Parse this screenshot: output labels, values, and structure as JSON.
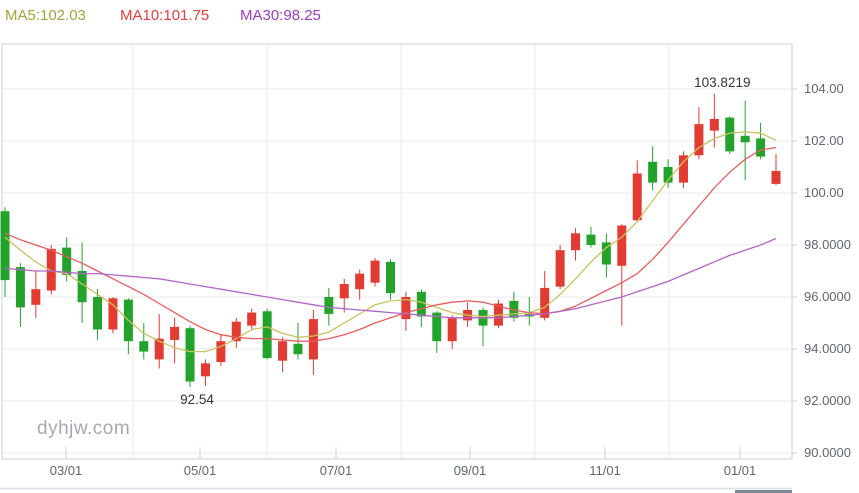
{
  "legend": {
    "ma5_label": "MA5:102.03",
    "ma10_label": "MA10:101.75",
    "ma30_label": "MA30:98.25"
  },
  "annotations": {
    "high_label": "103.8219",
    "low_label": "92.54"
  },
  "watermark": "dyhjw.com",
  "colors": {
    "up_candle": "#e23b32",
    "down_candle": "#23a32b",
    "ma5_line": "#c9c25e",
    "ma10_line": "#e75d5d",
    "ma30_line": "#b465c8",
    "legend_ma5": "#a3a33b",
    "legend_ma10": "#ee3b3b",
    "legend_ma30": "#9d3dbb",
    "grid": "#ebebf0",
    "border": "#c9d0d9",
    "axis_text": "#5f6670",
    "annotation_text": "#333333",
    "watermark_text": "#a6aab0",
    "scroll_track": "#d8dce3",
    "scroll_thumb": "#7b8696"
  },
  "chart_data": {
    "type": "candlestick",
    "title": "",
    "x_tick_labels": [
      "03/01",
      "05/01",
      "07/01",
      "09/01",
      "11/01",
      "01/01"
    ],
    "y_tick_labels": [
      "104.00",
      "102.00",
      "100.00",
      "98.0000",
      "96.0000",
      "94.0000",
      "92.0000",
      "90.0000"
    ],
    "y_tick_values": [
      104,
      102,
      100,
      98,
      96,
      94,
      92,
      90
    ],
    "ylim": [
      89.8,
      105.7
    ],
    "grid": true,
    "up_means": "red (close >= open)",
    "down_means": "green (close < open)",
    "high_annotation": {
      "value": 103.8219,
      "candle_index": 46
    },
    "low_annotation": {
      "value": 92.54,
      "candle_index": 12
    },
    "candles_ohlc": [
      [
        99.3,
        99.45,
        96.0,
        96.65
      ],
      [
        97.15,
        97.3,
        94.85,
        95.6
      ],
      [
        95.7,
        97.0,
        95.2,
        96.3
      ],
      [
        96.25,
        98.0,
        96.1,
        97.85
      ],
      [
        97.9,
        98.3,
        96.6,
        96.85
      ],
      [
        97.0,
        98.1,
        95.0,
        95.8
      ],
      [
        96.0,
        96.3,
        94.35,
        94.75
      ],
      [
        94.75,
        96.0,
        94.6,
        95.95
      ],
      [
        95.9,
        95.95,
        93.8,
        94.3
      ],
      [
        94.3,
        95.0,
        93.6,
        93.9
      ],
      [
        93.6,
        95.35,
        93.25,
        94.4
      ],
      [
        94.35,
        95.2,
        93.45,
        94.85
      ],
      [
        94.8,
        94.9,
        92.54,
        92.75
      ],
      [
        92.95,
        93.6,
        92.58,
        93.45
      ],
      [
        93.5,
        94.55,
        93.35,
        94.3
      ],
      [
        94.3,
        95.2,
        94.05,
        95.05
      ],
      [
        94.9,
        95.55,
        94.75,
        95.4
      ],
      [
        95.45,
        95.55,
        93.6,
        93.65
      ],
      [
        93.55,
        94.45,
        93.1,
        94.3
      ],
      [
        94.2,
        95.0,
        93.6,
        93.8
      ],
      [
        93.6,
        95.5,
        93.0,
        95.15
      ],
      [
        96.0,
        96.35,
        94.9,
        95.35
      ],
      [
        95.95,
        96.7,
        95.4,
        96.5
      ],
      [
        96.3,
        97.05,
        95.9,
        96.9
      ],
      [
        96.55,
        97.5,
        96.4,
        97.4
      ],
      [
        97.35,
        97.45,
        95.9,
        96.15
      ],
      [
        95.15,
        96.2,
        94.7,
        96.0
      ],
      [
        96.2,
        96.3,
        94.85,
        95.25
      ],
      [
        95.4,
        95.45,
        93.85,
        94.3
      ],
      [
        94.3,
        95.3,
        94.0,
        95.2
      ],
      [
        95.1,
        95.8,
        94.85,
        95.5
      ],
      [
        95.5,
        95.6,
        94.1,
        94.9
      ],
      [
        94.9,
        95.9,
        94.8,
        95.75
      ],
      [
        95.85,
        96.2,
        95.05,
        95.2
      ],
      [
        95.35,
        96.0,
        94.9,
        95.25
      ],
      [
        95.2,
        97.0,
        95.1,
        96.35
      ],
      [
        96.4,
        98.0,
        96.3,
        97.8
      ],
      [
        97.8,
        98.65,
        97.4,
        98.45
      ],
      [
        98.4,
        98.7,
        97.9,
        98.0
      ],
      [
        98.1,
        98.45,
        96.75,
        97.25
      ],
      [
        97.2,
        98.8,
        94.9,
        98.75
      ],
      [
        98.95,
        101.25,
        98.9,
        100.75
      ],
      [
        101.2,
        101.8,
        100.1,
        100.4
      ],
      [
        101.0,
        101.3,
        100.2,
        100.4
      ],
      [
        100.4,
        101.6,
        100.2,
        101.45
      ],
      [
        101.45,
        103.3,
        101.3,
        102.65
      ],
      [
        102.4,
        103.82,
        101.75,
        102.85
      ],
      [
        102.9,
        102.95,
        101.5,
        101.6
      ],
      [
        102.2,
        103.55,
        100.5,
        101.95
      ],
      [
        102.1,
        102.7,
        101.3,
        101.4
      ],
      [
        100.35,
        101.5,
        100.3,
        100.85
      ]
    ],
    "series": [
      {
        "name": "MA5",
        "values": [
          98.3,
          97.8,
          97.35,
          97.0,
          96.9,
          96.5,
          96.1,
          95.7,
          95.1,
          94.6,
          94.3,
          94.05,
          93.9,
          93.9,
          94.1,
          94.4,
          94.75,
          94.85,
          94.6,
          94.45,
          94.5,
          94.65,
          95.0,
          95.35,
          95.7,
          95.85,
          95.9,
          95.8,
          95.6,
          95.4,
          95.3,
          95.25,
          95.3,
          95.35,
          95.4,
          95.6,
          96.1,
          96.7,
          97.35,
          97.9,
          98.3,
          98.9,
          99.7,
          100.5,
          101.2,
          101.75,
          102.1,
          102.3,
          102.35,
          102.3,
          102.03
        ]
      },
      {
        "name": "MA10",
        "values": [
          98.45,
          98.2,
          98.0,
          97.8,
          97.55,
          97.3,
          97.0,
          96.7,
          96.4,
          96.1,
          95.75,
          95.4,
          95.05,
          94.75,
          94.55,
          94.45,
          94.4,
          94.4,
          94.35,
          94.3,
          94.3,
          94.4,
          94.55,
          94.75,
          95.0,
          95.2,
          95.4,
          95.55,
          95.7,
          95.8,
          95.85,
          95.8,
          95.65,
          95.5,
          95.4,
          95.35,
          95.45,
          95.65,
          95.95,
          96.25,
          96.55,
          96.9,
          97.45,
          98.1,
          98.8,
          99.5,
          100.2,
          100.8,
          101.3,
          101.65,
          101.75
        ]
      },
      {
        "name": "MA30",
        "values": [
          97.1,
          97.05,
          97.0,
          97.0,
          96.95,
          96.9,
          96.9,
          96.85,
          96.8,
          96.75,
          96.7,
          96.6,
          96.5,
          96.4,
          96.3,
          96.2,
          96.1,
          96.0,
          95.9,
          95.8,
          95.7,
          95.6,
          95.55,
          95.5,
          95.45,
          95.4,
          95.35,
          95.3,
          95.25,
          95.2,
          95.2,
          95.2,
          95.2,
          95.25,
          95.3,
          95.35,
          95.45,
          95.55,
          95.7,
          95.85,
          96.0,
          96.2,
          96.4,
          96.6,
          96.85,
          97.1,
          97.35,
          97.6,
          97.8,
          98.0,
          98.25
        ]
      }
    ]
  }
}
